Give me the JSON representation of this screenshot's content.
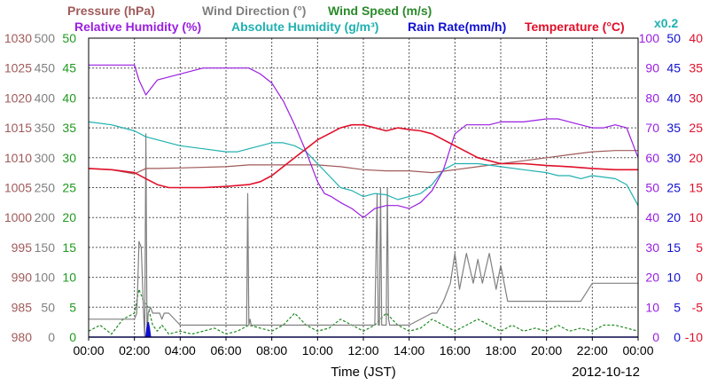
{
  "chart_data": {
    "type": "line",
    "date": "2012-10-12",
    "xlabel": "Time (JST)",
    "x_ticks": [
      "00:00",
      "02:00",
      "04:00",
      "06:00",
      "08:00",
      "10:00",
      "12:00",
      "14:00",
      "16:00",
      "18:00",
      "20:00",
      "22:00",
      "00:00"
    ],
    "title_lines": [
      [
        {
          "text": "Pressure (hPa)",
          "color": "#a05a5a"
        },
        {
          "text": "Wind Direction (°)",
          "color": "#808080"
        },
        {
          "text": "Wind Speed (m/s)",
          "color": "#2a8a2a"
        }
      ],
      [
        {
          "text": "Relative Humidity (%)",
          "color": "#9a1fe0"
        },
        {
          "text": "Absolute Humidity (g/m³)",
          "color": "#20b0b0"
        },
        {
          "text": "Rain Rate(mm/h)",
          "color": "#1010d0"
        },
        {
          "text": "Temperature (°C)",
          "color": "#e0102a"
        }
      ]
    ],
    "rain_scale_note": "x0.2",
    "axes": {
      "pressure": {
        "color": "#a05a5a",
        "ticks": [
          "1030",
          "1025",
          "1020",
          "1015",
          "1010",
          "1005",
          "1000",
          "995",
          "990",
          "985",
          "980"
        ],
        "ylim": [
          980,
          1030
        ]
      },
      "wind_dir": {
        "color": "#808080",
        "ticks": [
          "500",
          "450",
          "400",
          "350",
          "300",
          "250",
          "200",
          "150",
          "100",
          "50",
          "0"
        ],
        "ylim": [
          0,
          500
        ]
      },
      "wind_speed": {
        "color": "#1f9a1f",
        "ticks": [
          "50",
          "45",
          "40",
          "35",
          "30",
          "25",
          "20",
          "15",
          "10",
          "5",
          "0"
        ],
        "ylim": [
          0,
          50
        ]
      },
      "rel_hum": {
        "color": "#9a1fe0",
        "ticks": [
          "100",
          "90",
          "80",
          "70",
          "60",
          "50",
          "40",
          "30",
          "20",
          "10",
          "0"
        ],
        "ylim": [
          0,
          100
        ]
      },
      "abs_hum": {
        "color": "#1010d0",
        "ticks": [
          "50",
          "45",
          "40",
          "35",
          "30",
          "25",
          "20",
          "15",
          "10",
          "5",
          "0"
        ],
        "ylim": [
          0,
          50
        ]
      },
      "temp": {
        "color": "#e0102a",
        "ticks": [
          "40",
          "35",
          "30",
          "25",
          "20",
          "15",
          "10",
          "5",
          "0",
          "-5",
          "-10"
        ],
        "ylim": [
          -10,
          40
        ]
      }
    },
    "series": [
      {
        "name": "Pressure (hPa)",
        "axis": "pressure",
        "color": "#a05a5a",
        "x": [
          0,
          1,
          2,
          2.5,
          3,
          4,
          6,
          7,
          8,
          9,
          10,
          11,
          12,
          13,
          14,
          15,
          16,
          17,
          18,
          19,
          20,
          21,
          22,
          23,
          24
        ],
        "y": [
          1008.2,
          1008,
          1007.3,
          1008.2,
          1008.2,
          1008.3,
          1008.5,
          1008.8,
          1008.8,
          1008.8,
          1008.8,
          1008.5,
          1008,
          1007.8,
          1007.8,
          1007.5,
          1008,
          1008.5,
          1009,
          1009.5,
          1010,
          1010.5,
          1011,
          1011.2,
          1011.2
        ]
      },
      {
        "name": "Relative Humidity (%)",
        "axis": "rel_hum",
        "color": "#9a1fe0",
        "x": [
          0,
          1,
          2,
          2.2,
          2.5,
          2.8,
          3,
          4,
          5,
          6,
          7,
          7.5,
          8,
          8.5,
          9,
          9.5,
          10,
          10.3,
          10.6,
          11,
          11.5,
          12,
          12.5,
          13,
          13.5,
          14,
          14.5,
          15,
          15.5,
          16,
          16.5,
          17,
          17.5,
          18,
          19,
          20,
          20.5,
          21,
          22,
          22.5,
          23,
          23.5,
          24
        ],
        "y": [
          91,
          91,
          91,
          86,
          81,
          84,
          86,
          88,
          90,
          90,
          90,
          88,
          85,
          79,
          71,
          62,
          52,
          48,
          47,
          45,
          43,
          40,
          43,
          44,
          44,
          43,
          45,
          49,
          56,
          68,
          71,
          71,
          71,
          72,
          72,
          73,
          73,
          72,
          70,
          70,
          71,
          70,
          60
        ]
      },
      {
        "name": "Absolute Humidity (g/m³)",
        "axis": "abs_hum",
        "color": "#20b0b0",
        "x": [
          0,
          1,
          2,
          2.5,
          3,
          4,
          5,
          6,
          6.5,
          7,
          7.5,
          8,
          8.5,
          9,
          9.5,
          10,
          10.5,
          11,
          11.5,
          12,
          12.5,
          13,
          13.5,
          14,
          14.5,
          15,
          15.5,
          16,
          17,
          18,
          19,
          20,
          20.5,
          21,
          21.5,
          22,
          23,
          23.5,
          24
        ],
        "y": [
          36,
          35.5,
          34.5,
          33.5,
          33,
          32,
          31.5,
          31,
          31,
          31.5,
          32,
          32.5,
          32.5,
          32,
          31,
          29,
          27,
          25,
          24.5,
          23.5,
          24,
          23.8,
          23,
          23.5,
          24,
          25.5,
          28,
          29,
          29,
          28.5,
          28,
          27.5,
          27,
          27,
          26.5,
          27,
          26.5,
          25.5,
          22
        ]
      },
      {
        "name": "Temperature (°C)",
        "axis": "temp",
        "color": "#e0102a",
        "x": [
          0,
          1,
          2,
          2.5,
          3,
          3.5,
          4,
          5,
          6,
          7,
          7.5,
          8,
          8.5,
          9,
          9.5,
          10,
          10.5,
          11,
          11.5,
          12,
          12.5,
          13,
          13.5,
          14,
          14.5,
          15,
          15.5,
          16,
          16.5,
          17,
          18,
          19,
          20,
          21,
          22,
          23,
          24
        ],
        "y": [
          18.2,
          18,
          17.5,
          16.5,
          15.5,
          15,
          15,
          15,
          15.2,
          15.5,
          16,
          17,
          18.5,
          20,
          21.5,
          23,
          24,
          25,
          25.5,
          25.5,
          25,
          24.5,
          25,
          24.7,
          24.5,
          24,
          23,
          22,
          21,
          20,
          19,
          19,
          18.7,
          18.5,
          18.2,
          18,
          18
        ]
      },
      {
        "name": "Wind Direction (°)",
        "axis": "wind_dir",
        "color": "#808080",
        "x": [
          0,
          2,
          2.1,
          2.15,
          2.2,
          2.3,
          2.4,
          2.45,
          2.5,
          2.55,
          2.6,
          2.7,
          2.8,
          3,
          3.1,
          3.2,
          3.3,
          3.5,
          4,
          5,
          6,
          6.9,
          6.95,
          7,
          7.05,
          7.1,
          8,
          10,
          10.5,
          11,
          11.5,
          12,
          12.5,
          12.6,
          12.65,
          12.7,
          12.75,
          12.8,
          12.9,
          13,
          13.05,
          13.1,
          13.15,
          13.2,
          13.3,
          13.5,
          14,
          15,
          15.2,
          15.5,
          15.8,
          16,
          16.2,
          16.5,
          16.8,
          17,
          17.2,
          17.5,
          17.8,
          18,
          18.3,
          18.5,
          19,
          19.5,
          20,
          21,
          21.5,
          22,
          22.5,
          23,
          24
        ],
        "y": [
          30,
          30,
          40,
          90,
          160,
          150,
          40,
          0,
          340,
          0,
          40,
          50,
          40,
          40,
          40,
          30,
          40,
          40,
          20,
          20,
          20,
          20,
          240,
          20,
          30,
          20,
          20,
          20,
          20,
          20,
          20,
          20,
          20,
          240,
          20,
          20,
          250,
          20,
          20,
          20,
          250,
          30,
          20,
          20,
          20,
          20,
          20,
          40,
          40,
          60,
          90,
          140,
          80,
          140,
          90,
          130,
          90,
          140,
          80,
          120,
          60,
          60,
          60,
          60,
          60,
          60,
          60,
          90,
          90,
          90,
          90
        ]
      },
      {
        "name": "Wind Speed (m/s)",
        "axis": "wind_speed",
        "color": "#1f8a1f",
        "x": [
          0,
          0.5,
          1,
          1.5,
          2,
          2.2,
          2.4,
          2.6,
          2.8,
          3,
          3.2,
          3.5,
          4,
          4.5,
          5,
          5.5,
          6,
          6.5,
          7,
          7.5,
          8,
          8.5,
          9,
          9.5,
          10,
          10.5,
          11,
          11.5,
          12,
          12.5,
          13,
          13.5,
          14,
          14.5,
          15,
          15.5,
          16,
          16.5,
          17,
          17.5,
          18,
          18.5,
          19,
          19.5,
          20,
          20.5,
          21,
          21.5,
          22,
          22.5,
          23,
          23.5,
          24
        ],
        "y": [
          1,
          2,
          0.5,
          3,
          4,
          8,
          6,
          5,
          2,
          1,
          2,
          0.5,
          1,
          0.5,
          1,
          1.5,
          0.5,
          1,
          2,
          1.5,
          1,
          2,
          4,
          2,
          1,
          1.5,
          3,
          2,
          1,
          2,
          4,
          2,
          1,
          1.5,
          3,
          2,
          1,
          2,
          3,
          2,
          1,
          2,
          1,
          1.5,
          1,
          2,
          1,
          1.5,
          1,
          2,
          2,
          1.5,
          1
        ]
      },
      {
        "name": "Rain Rate(mm/h)",
        "axis": "abs_hum",
        "color": "#1010d0",
        "x": [
          0,
          2.5,
          2.55,
          2.6,
          2.65,
          2.7,
          2.75,
          24
        ],
        "y": [
          0,
          0,
          1.5,
          2.5,
          1.5,
          0,
          0,
          0
        ]
      }
    ]
  }
}
